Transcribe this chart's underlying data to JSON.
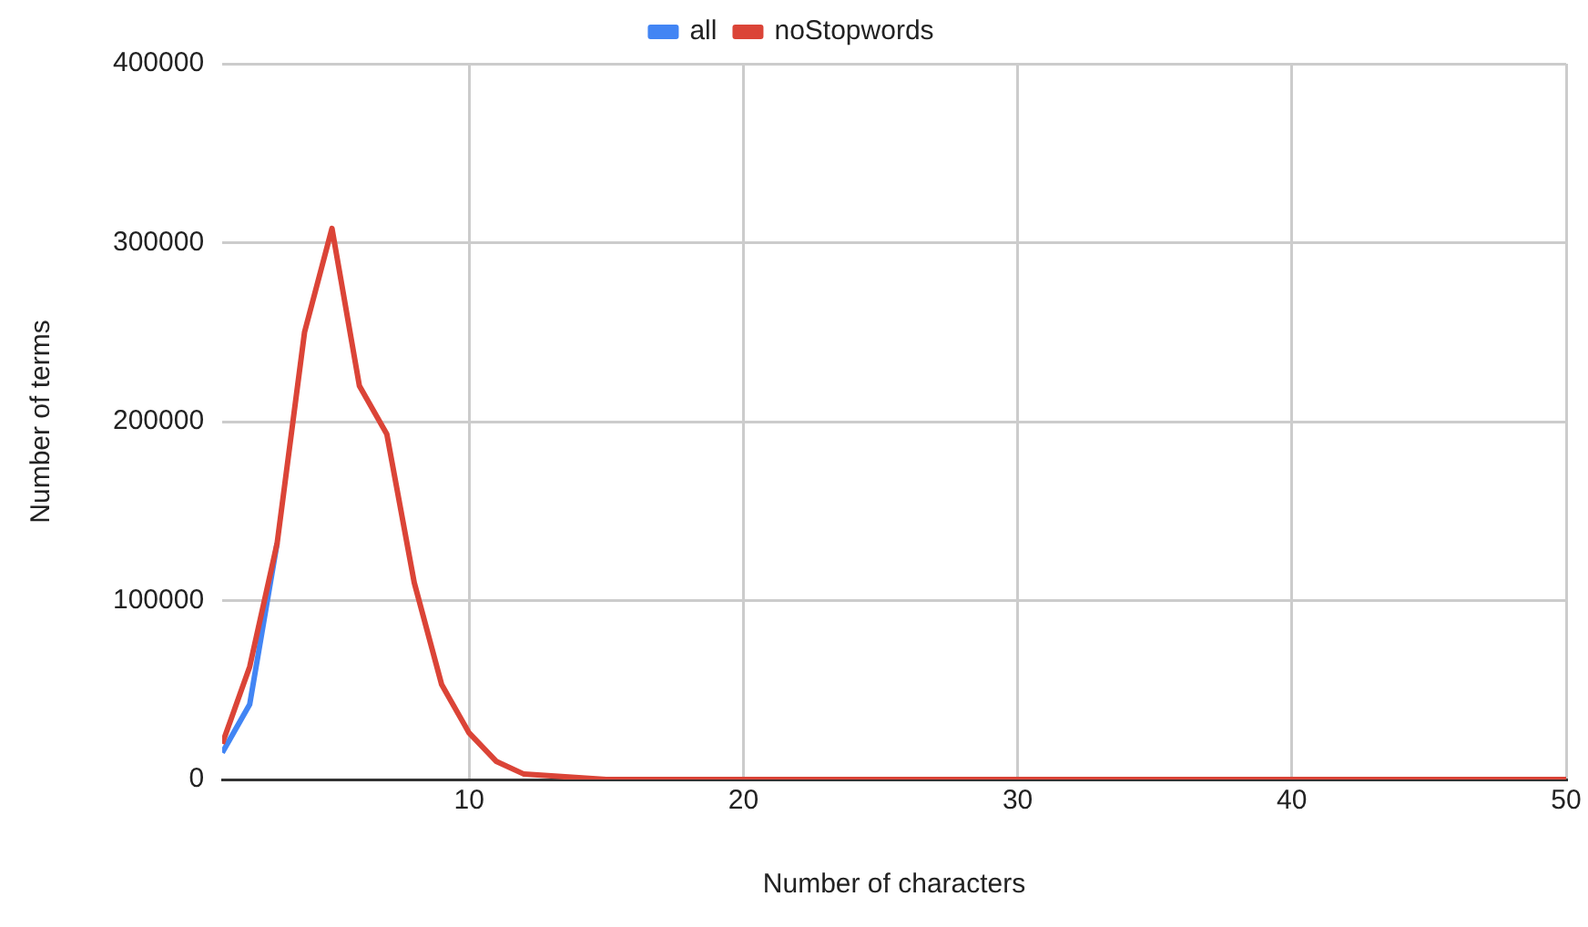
{
  "chart_data": {
    "type": "line",
    "xlabel": "Number of characters",
    "ylabel": "Number of terms",
    "x": [
      1,
      2,
      3,
      4,
      5,
      6,
      7,
      8,
      9,
      10,
      11,
      12,
      13,
      14,
      15,
      16,
      17,
      18,
      19,
      20,
      21,
      22,
      23,
      24,
      25,
      26,
      27,
      28,
      29,
      30,
      31,
      32,
      33,
      34,
      35,
      36,
      37,
      38,
      39,
      40,
      41,
      42,
      43,
      44,
      45,
      46,
      47,
      48,
      49,
      50
    ],
    "series": [
      {
        "name": "all",
        "color": "#4285f4",
        "values": [
          15000,
          42000,
          132000,
          null,
          null,
          null,
          null,
          null,
          null,
          null,
          null,
          null,
          null,
          null,
          null,
          null,
          null,
          null,
          null,
          null,
          null,
          null,
          null,
          null,
          null,
          null,
          null,
          null,
          null,
          null,
          null,
          null,
          null,
          null,
          null,
          null,
          null,
          null,
          null,
          null,
          null,
          null,
          null,
          null,
          null,
          null,
          null,
          null,
          null,
          null
        ]
      },
      {
        "name": "noStopwords",
        "color": "#db4437",
        "values": [
          20000,
          63000,
          132000,
          250000,
          308000,
          220000,
          193000,
          110000,
          53000,
          26000,
          10000,
          3000,
          2000,
          1000,
          0,
          0,
          0,
          0,
          0,
          0,
          0,
          0,
          0,
          0,
          0,
          0,
          0,
          0,
          0,
          0,
          0,
          0,
          0,
          0,
          0,
          0,
          0,
          0,
          0,
          0,
          0,
          0,
          0,
          0,
          0,
          0,
          0,
          0,
          0,
          0
        ]
      }
    ],
    "xlim": [
      1,
      50
    ],
    "xticks": [
      10,
      20,
      30,
      40,
      50
    ],
    "ylim": [
      0,
      400000
    ],
    "yticks": [
      0,
      100000,
      200000,
      300000,
      400000
    ],
    "grid": true,
    "legend": "top",
    "marker": "none",
    "line_style": "solid"
  }
}
